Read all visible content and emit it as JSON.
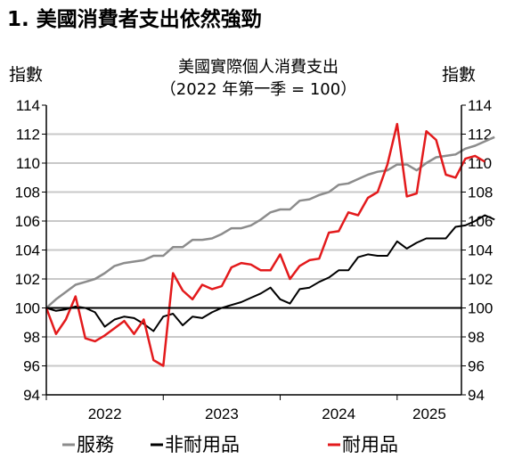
{
  "page": {
    "heading": "1. 美國消費者支出依然強勁"
  },
  "chart_data": {
    "type": "line",
    "title": "美國實際個人消費支出",
    "subtitle": "（2022 年第一季 = 100）",
    "ylabel_left": "指數",
    "ylabel_right": "指數",
    "ylim": [
      94,
      114
    ],
    "yticks": [
      94,
      96,
      98,
      100,
      102,
      104,
      106,
      108,
      110,
      112,
      114
    ],
    "grid": true,
    "reference_line": 100,
    "x_start": 2022.0,
    "x_step": 0.083333,
    "xlim": [
      2022.0,
      2025.55
    ],
    "x_category_labels": [
      "2022",
      "2023",
      "2024",
      "2025"
    ],
    "legend_position": "bottom",
    "series": [
      {
        "name": "服務",
        "color": "#8c8c8c",
        "values": [
          100.0,
          100.6,
          101.1,
          101.6,
          101.8,
          102.0,
          102.4,
          102.9,
          103.1,
          103.2,
          103.3,
          103.6,
          103.6,
          104.2,
          104.2,
          104.7,
          104.7,
          104.8,
          105.1,
          105.5,
          105.5,
          105.7,
          106.1,
          106.6,
          106.8,
          106.8,
          107.4,
          107.5,
          107.8,
          108.0,
          108.5,
          108.6,
          108.9,
          109.2,
          109.4,
          109.5,
          109.9,
          109.9,
          109.5,
          110.0,
          110.4,
          110.5,
          110.6,
          111.0,
          111.2,
          111.5,
          111.8
        ]
      },
      {
        "name": "非耐用品",
        "color": "#000000",
        "values": [
          100.0,
          99.8,
          99.9,
          100.1,
          100.0,
          99.7,
          98.7,
          99.2,
          99.4,
          99.3,
          98.9,
          98.4,
          99.4,
          99.6,
          98.8,
          99.4,
          99.3,
          99.7,
          100.0,
          100.2,
          100.4,
          100.7,
          101.0,
          101.4,
          100.6,
          100.3,
          101.3,
          101.4,
          101.8,
          102.1,
          102.6,
          102.6,
          103.5,
          103.7,
          103.6,
          103.6,
          104.6,
          104.1,
          104.5,
          104.8,
          104.8,
          104.8,
          105.6,
          105.7,
          106.0,
          106.4,
          106.1
        ]
      },
      {
        "name": "耐用品",
        "color": "#e31a1c",
        "values": [
          100.0,
          98.2,
          99.2,
          100.8,
          97.9,
          97.7,
          98.1,
          98.6,
          99.1,
          98.2,
          99.2,
          96.4,
          96.0,
          102.4,
          101.2,
          100.6,
          101.6,
          101.3,
          101.5,
          102.8,
          103.1,
          103.0,
          102.6,
          102.6,
          103.7,
          102.0,
          102.9,
          103.3,
          103.4,
          105.2,
          105.3,
          106.6,
          106.4,
          107.6,
          108.0,
          109.9,
          112.7,
          107.7,
          107.9,
          112.2,
          111.6,
          109.2,
          109.0,
          110.3,
          110.5,
          110.1
        ]
      }
    ]
  }
}
